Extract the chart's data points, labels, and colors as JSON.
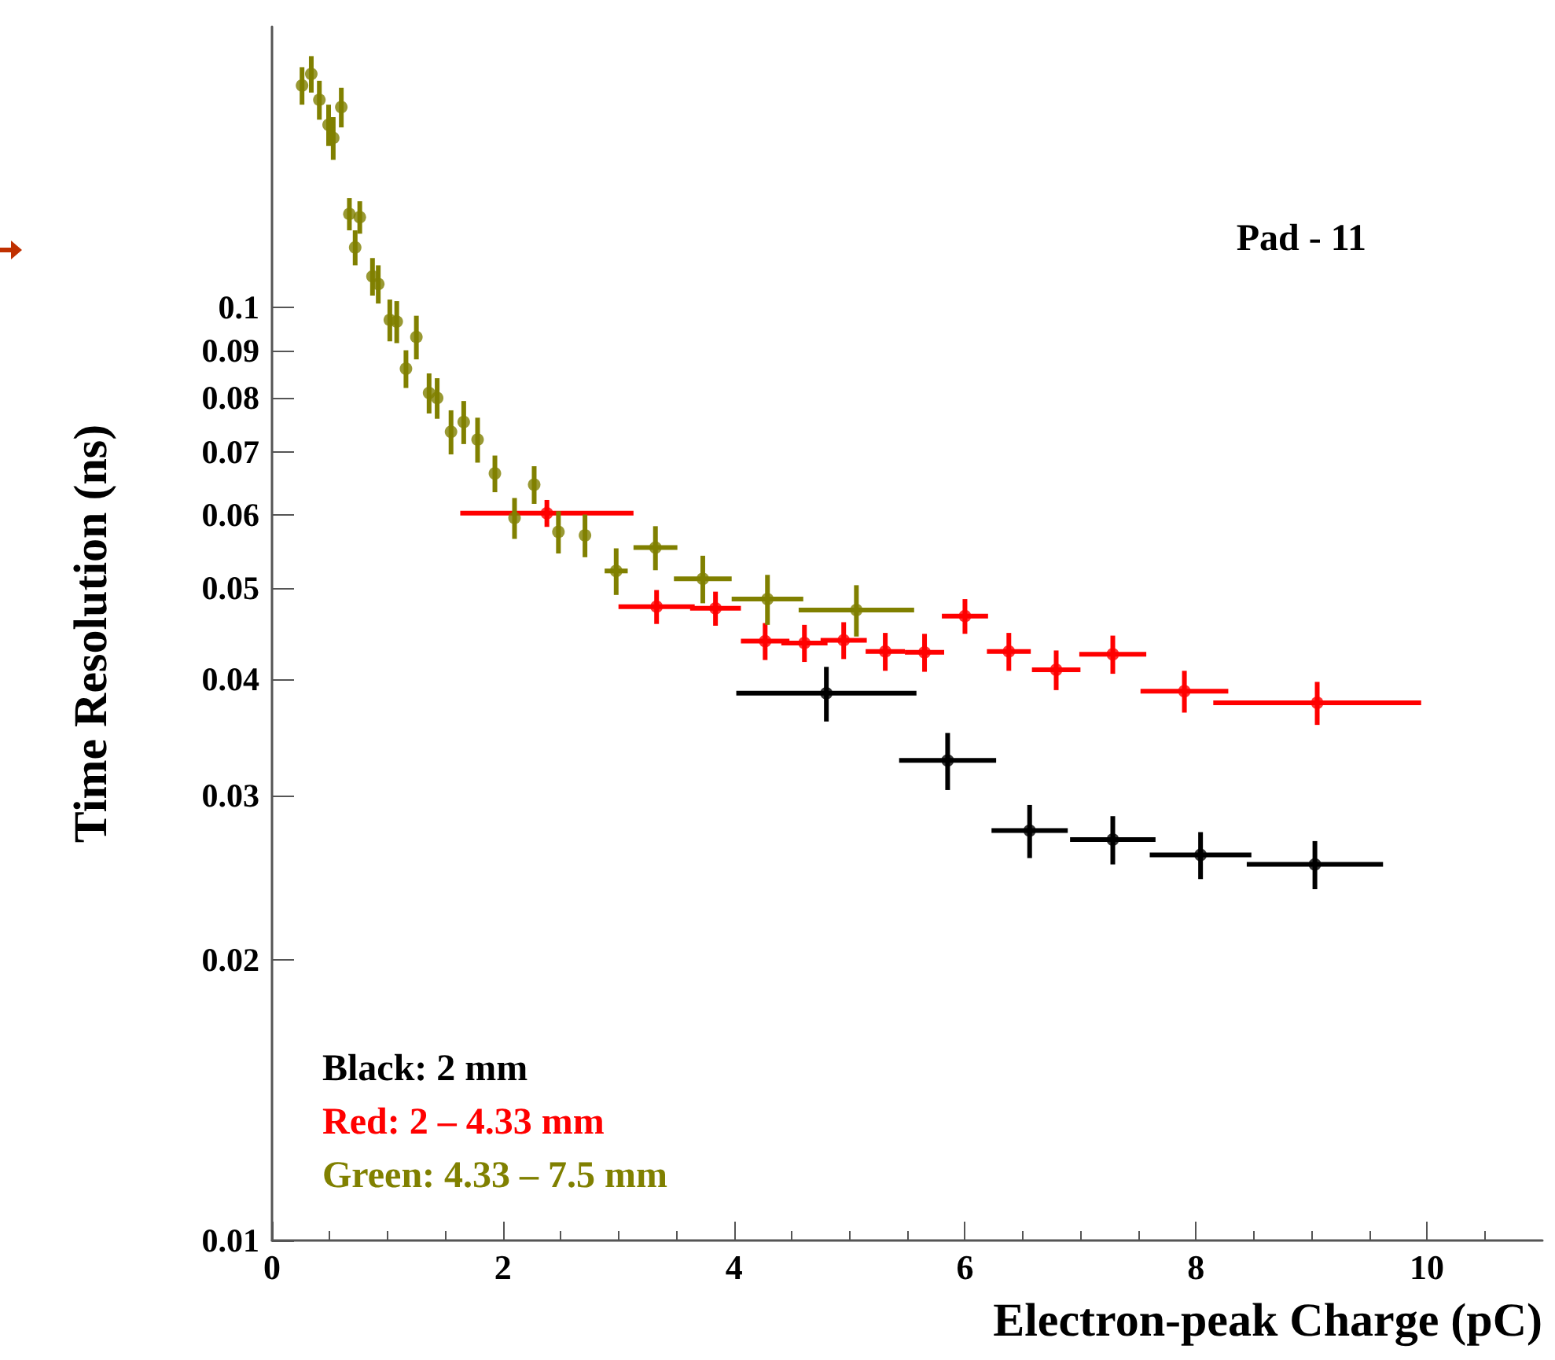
{
  "chart_data": {
    "type": "scatter",
    "xlabel": "Electron-peak Charge (pC)",
    "ylabel": "Time Resolution (ns)",
    "annotations": [
      "Pad - 11"
    ],
    "xlim": [
      0,
      11
    ],
    "xticks": [
      0,
      2,
      4,
      6,
      8,
      10
    ],
    "ylim": [
      0.01,
      0.2
    ],
    "yticks": [
      0.01,
      0.02,
      0.03,
      0.04,
      0.05,
      0.06,
      0.07,
      0.08,
      0.09,
      0.1
    ],
    "log": "y",
    "grid": false,
    "legend": "bottom left",
    "marker": "circle",
    "series": [
      {
        "name": "Black: 2 mm",
        "color": "#000000",
        "x": [
          4.8,
          5.85,
          6.56,
          7.28,
          8.04,
          9.03
        ],
        "values": [
          0.0386,
          0.0327,
          0.0275,
          0.0269,
          0.0259,
          0.0253
        ],
        "errors": [
          0.0026,
          0.0023,
          0.0018,
          0.0016,
          0.0015,
          0.0015
        ],
        "xerrors": [
          0.78,
          0.42,
          0.33,
          0.37,
          0.44,
          0.59
        ]
      },
      {
        "name": "Red: 2 – 4.33 mm",
        "color": "#ff0000",
        "x": [
          2.38,
          3.33,
          3.84,
          4.27,
          4.61,
          4.95,
          5.31,
          5.65,
          6.0,
          6.38,
          6.79,
          7.28,
          7.9,
          9.05
        ],
        "values": [
          0.0602,
          0.0478,
          0.0476,
          0.0439,
          0.0437,
          0.044,
          0.0428,
          0.0427,
          0.0467,
          0.0428,
          0.0409,
          0.0425,
          0.0388,
          0.0377
        ],
        "errors": [
          0.002,
          0.002,
          0.002,
          0.002,
          0.002,
          0.002,
          0.002,
          0.002,
          0.002,
          0.002,
          0.002,
          0.002,
          0.002,
          0.002
        ],
        "xerrors": [
          0.75,
          0.33,
          0.22,
          0.21,
          0.2,
          0.2,
          0.17,
          0.17,
          0.2,
          0.19,
          0.21,
          0.29,
          0.38,
          0.9
        ]
      },
      {
        "name": "Green: 4.33 – 7.5 mm",
        "color": "#808000",
        "x": [
          0.26,
          0.34,
          0.41,
          0.49,
          0.53,
          0.6,
          0.67,
          0.76,
          0.72,
          0.87,
          0.92,
          1.02,
          1.08,
          1.25,
          1.16,
          1.36,
          1.43,
          1.55,
          1.66,
          1.78,
          1.93,
          2.27,
          2.1,
          2.48,
          2.71,
          2.98,
          3.32,
          3.73,
          4.29,
          5.06
        ],
        "values": [
          0.173,
          0.178,
          0.167,
          0.157,
          0.152,
          0.164,
          0.126,
          0.125,
          0.116,
          0.108,
          0.106,
          0.097,
          0.0966,
          0.093,
          0.086,
          0.081,
          0.08,
          0.0736,
          0.0754,
          0.0722,
          0.0664,
          0.0646,
          0.0595,
          0.0575,
          0.057,
          0.0522,
          0.0553,
          0.0512,
          0.0487,
          0.0474
        ],
        "errors": [
          0.008,
          0.008,
          0.008,
          0.008,
          0.008,
          0.008,
          0.005,
          0.005,
          0.005,
          0.005,
          0.005,
          0.005,
          0.005,
          0.005,
          0.004,
          0.004,
          0.004,
          0.004,
          0.004,
          0.004,
          0.003,
          0.003,
          0.003,
          0.003,
          0.003,
          0.003,
          0.003,
          0.003,
          0.003,
          0.003
        ],
        "xerrors": [
          null,
          null,
          null,
          null,
          null,
          null,
          null,
          null,
          null,
          null,
          null,
          null,
          null,
          null,
          null,
          null,
          null,
          null,
          null,
          null,
          null,
          null,
          null,
          null,
          null,
          0.1,
          0.19,
          0.25,
          0.31,
          0.5
        ]
      }
    ]
  }
}
